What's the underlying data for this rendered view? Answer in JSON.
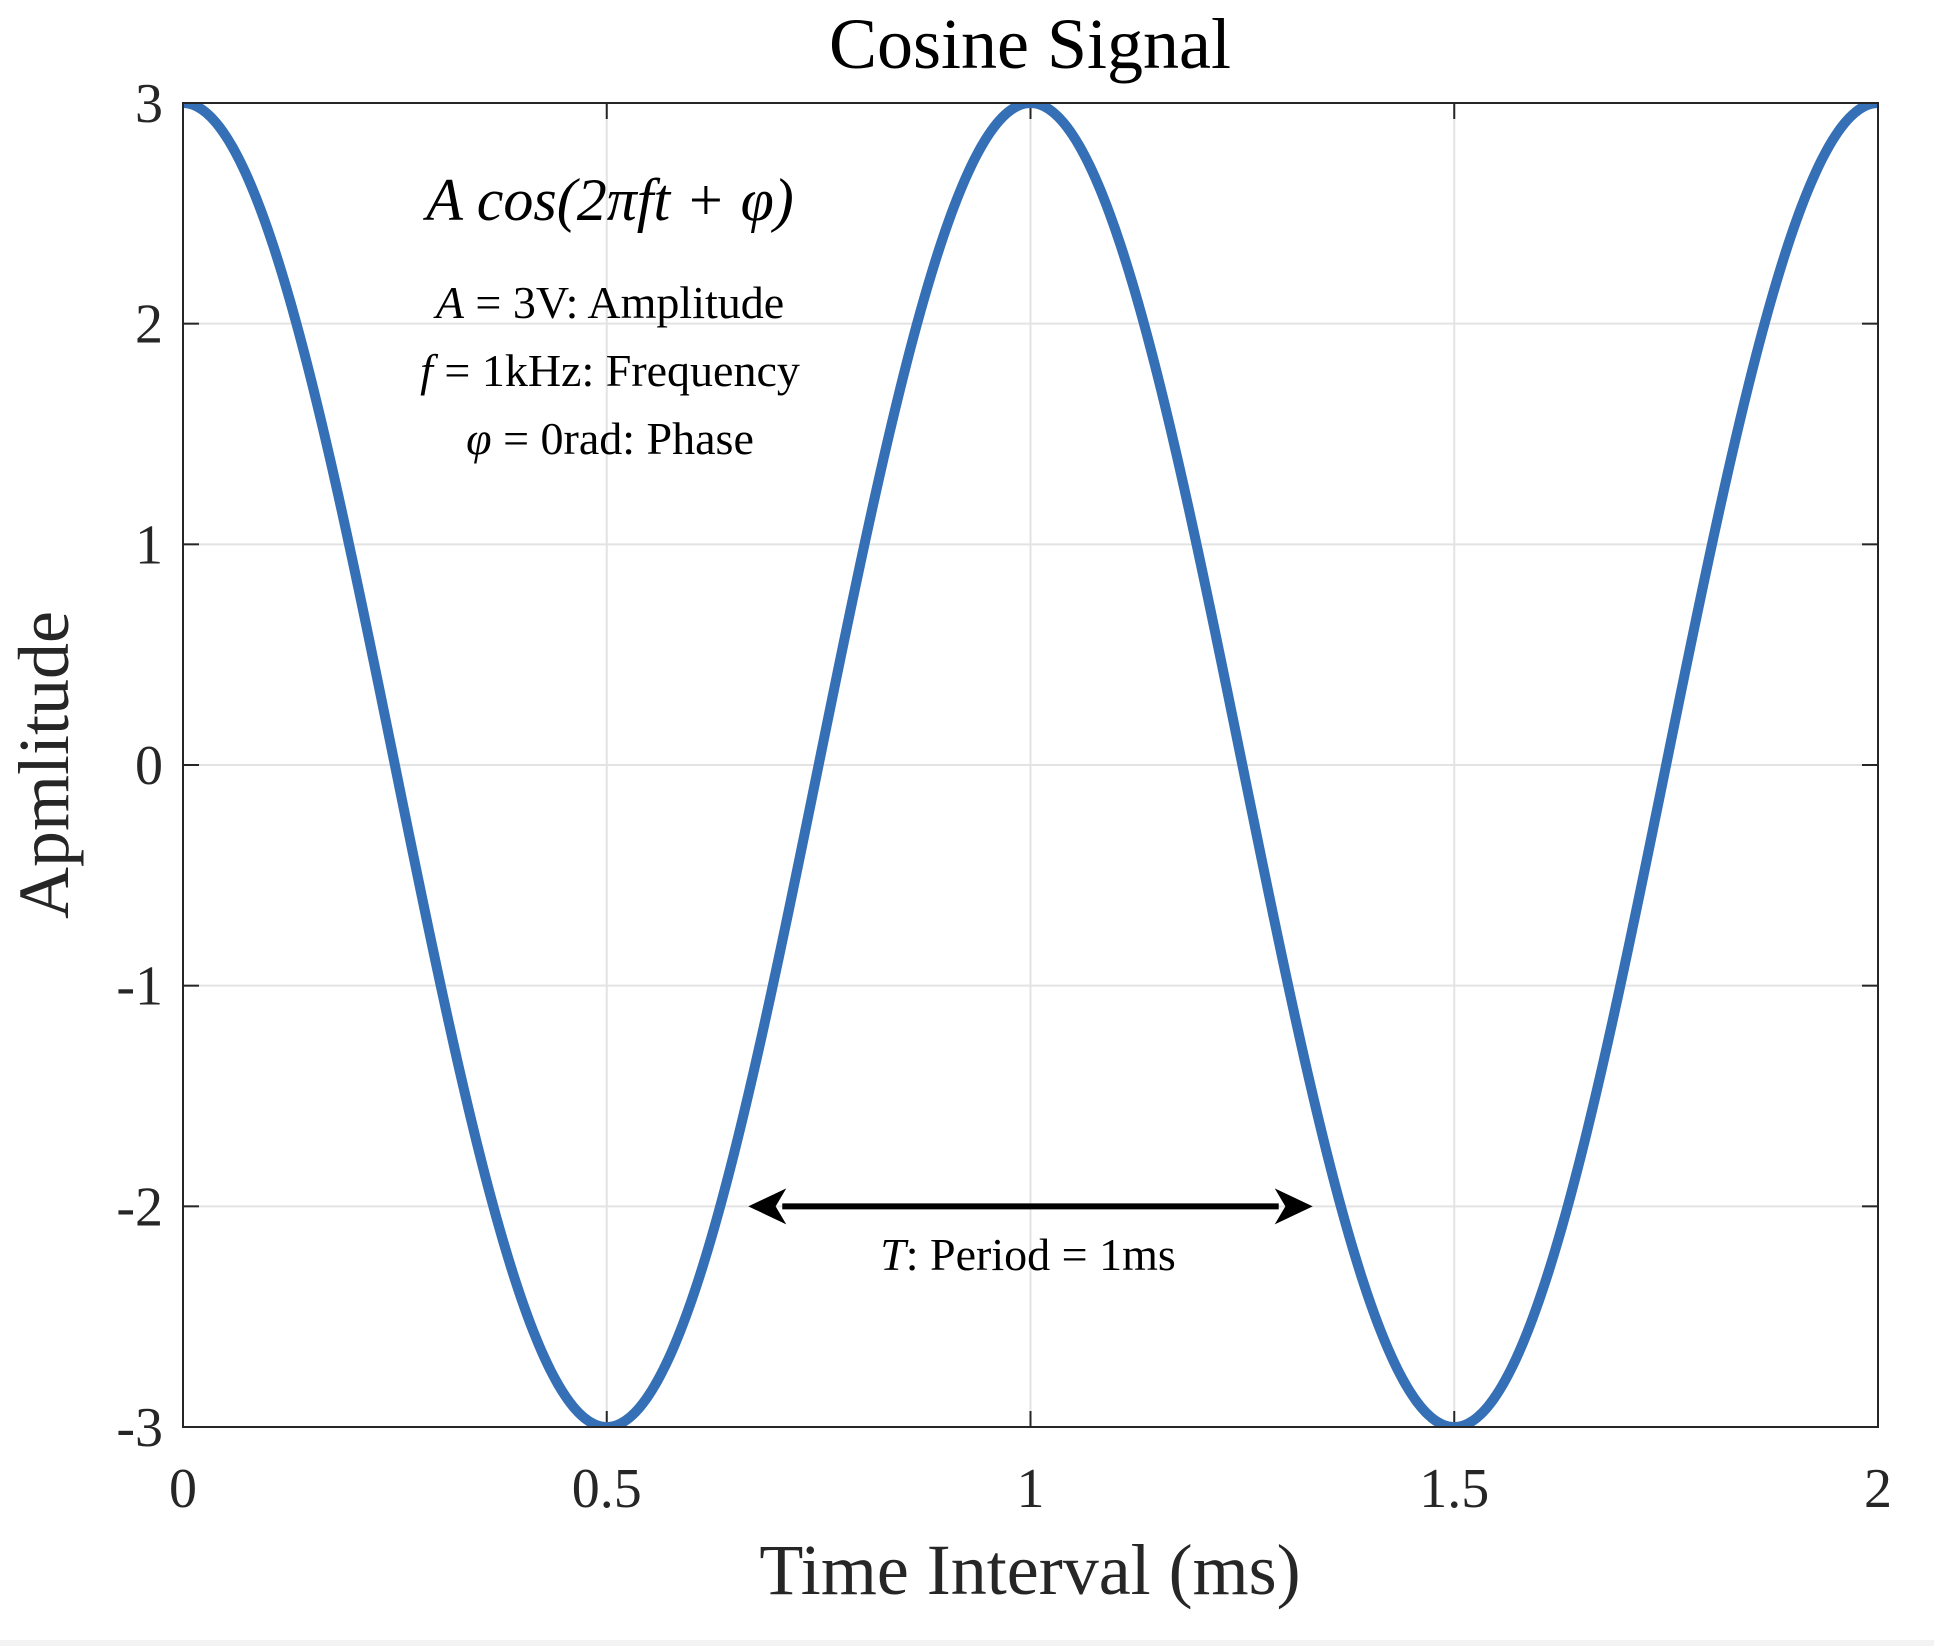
{
  "chart_data": {
    "type": "line",
    "title": "Cosine Signal",
    "xlabel": "Time Interval (ms)",
    "ylabel": "Apmlitude",
    "xlim": [
      0,
      2
    ],
    "ylim": [
      -3,
      3
    ],
    "grid": true,
    "x_ticks": [
      0,
      0.5,
      1,
      1.5,
      2
    ],
    "x_tick_labels": [
      "0",
      "0.5",
      "1",
      "1.5",
      "2"
    ],
    "y_ticks": [
      -3,
      -2,
      -1,
      0,
      1,
      2,
      3
    ],
    "y_tick_labels": [
      "-3",
      "-2",
      "-1",
      "0",
      "1",
      "2",
      "3"
    ],
    "series": [
      {
        "function": "A*cos(2*pi*f*t + phi)",
        "amplitude": 3,
        "frequency_per_ms": 1,
        "phase_rad": 0,
        "x_range": [
          0,
          2
        ],
        "color": "#3570b6"
      }
    ],
    "annotations": {
      "formula": "A cos(2πft + φ)",
      "amplitude_line": {
        "symbol": "A",
        "rest": " = 3V: Amplitude"
      },
      "frequency_line": {
        "symbol": "f",
        "rest": " = 1kHz: Frequency"
      },
      "phase_line": {
        "symbol": "φ",
        "rest": " = 0rad: Phase"
      },
      "period": {
        "symbol": "T",
        "rest": ": Period = 1ms",
        "arrow_x": [
          0.667,
          1.333
        ],
        "arrow_y": -2
      }
    }
  }
}
